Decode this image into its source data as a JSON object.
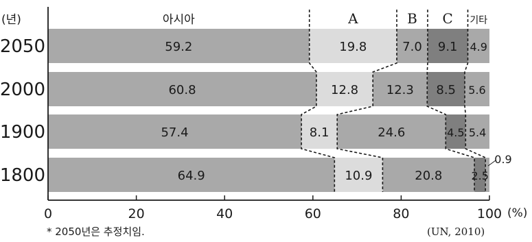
{
  "chart_data": {
    "type": "bar",
    "stacked": true,
    "orientation": "horizontal",
    "y_axis_unit": "(년)",
    "x_axis_unit": "(%)",
    "xlim": [
      0,
      100
    ],
    "x_ticks": [
      "0",
      "20",
      "40",
      "60",
      "80",
      "100"
    ],
    "categories": [
      "2050",
      "2000",
      "1900",
      "1800"
    ],
    "series": [
      {
        "name": "아시아",
        "values": [
          59.2,
          60.8,
          57.4,
          64.9
        ],
        "labels": [
          "59.2",
          "60.8",
          "57.4",
          "64.9"
        ],
        "color": "#a9a9a9"
      },
      {
        "name": "A",
        "values": [
          19.8,
          12.8,
          8.1,
          10.9
        ],
        "labels": [
          "19.8",
          "12.8",
          "8.1",
          "10.9"
        ],
        "color": "#dcdcdc"
      },
      {
        "name": "B",
        "values": [
          7.0,
          12.3,
          24.6,
          20.8
        ],
        "labels": [
          "7.0",
          "12.3",
          "24.6",
          "20.8"
        ],
        "color": "#a9a9a9"
      },
      {
        "name": "C",
        "values": [
          9.1,
          8.5,
          4.5,
          2.5
        ],
        "labels": [
          "9.1",
          "8.5",
          "4.5",
          "2.5"
        ],
        "color": "#7f7f7f"
      },
      {
        "name": "기타",
        "values": [
          4.9,
          5.6,
          5.4,
          0.9
        ],
        "labels": [
          "4.9",
          "5.6",
          "5.4",
          "0.9"
        ],
        "color": "#a9a9a9"
      }
    ],
    "footnote": "* 2050년은 추정치임.",
    "source": "(UN, 2010)"
  }
}
